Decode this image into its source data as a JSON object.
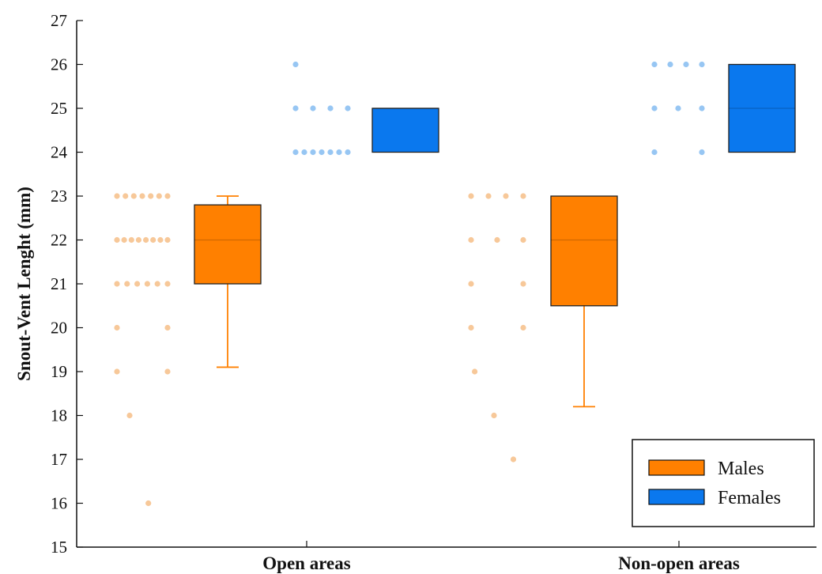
{
  "chart_data": {
    "type": "box",
    "ylabel": "Snout-Vent Lenght (mm)",
    "ylim": [
      15,
      27
    ],
    "yticks": [
      "15",
      "16",
      "17",
      "18",
      "19",
      "20",
      "21",
      "22",
      "23",
      "24",
      "25",
      "26",
      "27"
    ],
    "categories": [
      "Open areas",
      "Non-open areas"
    ],
    "grid": false,
    "legend": {
      "placement": "bottom-right"
    },
    "series": [
      {
        "name": "Males",
        "color": "#ff8000",
        "boxes": [
          {
            "category": "Open areas",
            "min": 19.1,
            "q1": 21,
            "median": 22,
            "q3": 22.8,
            "max": 23
          },
          {
            "category": "Non-open areas",
            "min": 18.2,
            "q1": 20.5,
            "median": 22,
            "q3": 23,
            "max": 23
          }
        ],
        "points": [
          {
            "category": "Open areas",
            "y": [
              23,
              23,
              23,
              23,
              23,
              23,
              23,
              22,
              22,
              22,
              22,
              22,
              22,
              22,
              22,
              21,
              21,
              21,
              21,
              21,
              21,
              20,
              20,
              19,
              19,
              18,
              16
            ]
          },
          {
            "category": "Non-open areas",
            "y": [
              23,
              23,
              23,
              23,
              22,
              22,
              22,
              21,
              21,
              20,
              20,
              19,
              18,
              17
            ]
          }
        ]
      },
      {
        "name": "Females",
        "color": "#0a78ee",
        "boxes": [
          {
            "category": "Open areas",
            "min": 24,
            "q1": 24,
            "median": 25,
            "q3": 25,
            "max": 25
          },
          {
            "category": "Non-open areas",
            "min": 24,
            "q1": 24,
            "median": 25,
            "q3": 26,
            "max": 26
          }
        ],
        "points": [
          {
            "category": "Open areas",
            "y": [
              26,
              25,
              25,
              25,
              25,
              24,
              24,
              24,
              24,
              24,
              24,
              24
            ]
          },
          {
            "category": "Non-open areas",
            "y": [
              26,
              26,
              26,
              26,
              25,
              25,
              25,
              24,
              24
            ]
          }
        ]
      }
    ]
  }
}
